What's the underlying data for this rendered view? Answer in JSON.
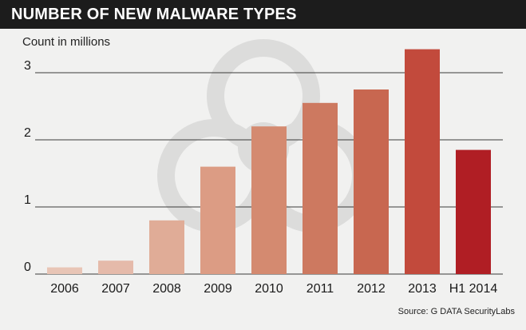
{
  "title": "NUMBER OF NEW MALWARE TYPES",
  "unit_label": "Count in millions",
  "source": "Source: G DATA SecurityLabs",
  "colors": {
    "background": "#f1f1f0",
    "title_bar": "#1c1c1c",
    "watermark": "#dcdcdb",
    "bars": [
      "#e8c5b6",
      "#e5baaa",
      "#e0ac97",
      "#dc9c84",
      "#d48a70",
      "#cd7960",
      "#c86750",
      "#c24a3c",
      "#b01e24"
    ]
  },
  "chart_data": {
    "type": "bar",
    "title": "NUMBER OF NEW MALWARE TYPES",
    "ylabel": "Count in millions",
    "xlabel": "",
    "categories": [
      "2006",
      "2007",
      "2008",
      "2009",
      "2010",
      "2011",
      "2012",
      "2013",
      "H1 2014"
    ],
    "values": [
      0.1,
      0.2,
      0.8,
      1.6,
      2.2,
      2.55,
      2.75,
      3.35,
      1.85
    ],
    "ylim": [
      0,
      3.5
    ],
    "yticks": [
      "0",
      "1",
      "2",
      "3"
    ],
    "grid": true,
    "watermark_icon": "biohazard-icon"
  }
}
